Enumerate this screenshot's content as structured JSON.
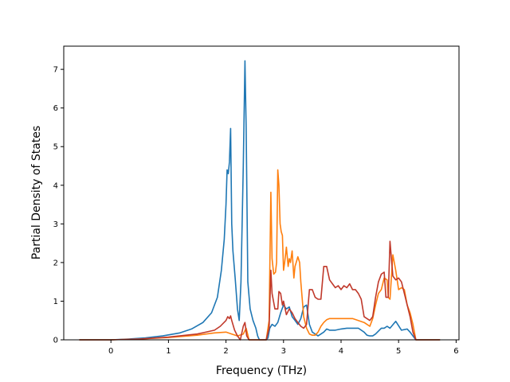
{
  "chart_data": {
    "type": "line",
    "xlabel": "Frequency (THz)",
    "ylabel": "Partial Density of States",
    "xlim": [
      -0.82,
      6.05
    ],
    "ylim": [
      0,
      7.6
    ],
    "xticks": [
      0,
      1,
      2,
      3,
      4,
      5,
      6
    ],
    "yticks": [
      0,
      1,
      2,
      3,
      4,
      5,
      6,
      7
    ],
    "grid": false,
    "series": [
      {
        "color": "#1f77b4",
        "x": [
          -0.55,
          0.0,
          0.3,
          0.6,
          0.9,
          1.2,
          1.4,
          1.6,
          1.75,
          1.85,
          1.92,
          1.97,
          2.0,
          2.02,
          2.04,
          2.06,
          2.08,
          2.1,
          2.12,
          2.16,
          2.2,
          2.23,
          2.26,
          2.3,
          2.33,
          2.35,
          2.38,
          2.42,
          2.47,
          2.52,
          2.55,
          2.58,
          2.62,
          2.66,
          2.7,
          2.73,
          2.76,
          2.8,
          2.85,
          2.9,
          2.95,
          3.0,
          3.05,
          3.1,
          3.15,
          3.2,
          3.25,
          3.3,
          3.35,
          3.4,
          3.45,
          3.5,
          3.55,
          3.6,
          3.7,
          3.75,
          3.8,
          3.9,
          4.0,
          4.1,
          4.2,
          4.3,
          4.4,
          4.45,
          4.5,
          4.55,
          4.6,
          4.7,
          4.75,
          4.8,
          4.85,
          4.95,
          5.05,
          5.15,
          5.2,
          5.25,
          5.3,
          5.5,
          5.72
        ],
        "y": [
          0.0,
          0.0,
          0.02,
          0.05,
          0.1,
          0.18,
          0.28,
          0.45,
          0.7,
          1.1,
          1.8,
          2.6,
          3.5,
          4.4,
          4.3,
          4.6,
          5.47,
          3.0,
          2.3,
          1.6,
          0.8,
          0.5,
          1.5,
          4.5,
          7.22,
          5.5,
          1.5,
          0.8,
          0.5,
          0.3,
          0.1,
          0.0,
          0.0,
          0.0,
          0.0,
          0.05,
          0.3,
          0.4,
          0.35,
          0.45,
          0.7,
          0.9,
          0.8,
          0.85,
          0.6,
          0.5,
          0.4,
          0.55,
          0.85,
          0.9,
          0.4,
          0.2,
          0.15,
          0.1,
          0.2,
          0.28,
          0.25,
          0.25,
          0.28,
          0.3,
          0.3,
          0.3,
          0.2,
          0.12,
          0.1,
          0.1,
          0.15,
          0.3,
          0.3,
          0.35,
          0.3,
          0.48,
          0.25,
          0.28,
          0.2,
          0.1,
          0.0,
          0.0,
          0.0
        ]
      },
      {
        "color": "#ff7f0e",
        "x": [
          -0.55,
          0.0,
          0.5,
          1.0,
          1.5,
          1.8,
          2.0,
          2.1,
          2.2,
          2.3,
          2.35,
          2.4,
          2.5,
          2.6,
          2.7,
          2.75,
          2.78,
          2.8,
          2.83,
          2.86,
          2.88,
          2.9,
          2.92,
          2.94,
          2.96,
          2.98,
          3.0,
          3.02,
          3.05,
          3.08,
          3.1,
          3.12,
          3.15,
          3.18,
          3.2,
          3.22,
          3.25,
          3.28,
          3.3,
          3.35,
          3.4,
          3.45,
          3.5,
          3.55,
          3.6,
          3.65,
          3.7,
          3.75,
          3.8,
          3.9,
          4.0,
          4.1,
          4.2,
          4.3,
          4.4,
          4.45,
          4.5,
          4.55,
          4.6,
          4.65,
          4.7,
          4.75,
          4.8,
          4.82,
          4.85,
          4.9,
          4.95,
          5.0,
          5.05,
          5.1,
          5.15,
          5.2,
          5.25,
          5.3,
          5.5,
          5.72
        ],
        "y": [
          0.0,
          0.0,
          0.02,
          0.06,
          0.12,
          0.18,
          0.2,
          0.15,
          0.1,
          0.15,
          0.3,
          0.0,
          0.0,
          0.0,
          0.0,
          0.5,
          3.82,
          2.1,
          1.7,
          1.75,
          2.0,
          4.4,
          4.0,
          3.0,
          2.8,
          2.7,
          1.8,
          2.0,
          2.4,
          1.9,
          2.1,
          2.0,
          2.3,
          1.6,
          1.9,
          2.0,
          2.15,
          2.0,
          1.5,
          0.6,
          0.3,
          0.15,
          0.12,
          0.12,
          0.2,
          0.35,
          0.45,
          0.52,
          0.55,
          0.55,
          0.55,
          0.55,
          0.55,
          0.5,
          0.45,
          0.4,
          0.35,
          0.55,
          0.9,
          1.2,
          1.3,
          1.6,
          1.55,
          1.1,
          1.05,
          2.2,
          1.8,
          1.3,
          1.35,
          1.3,
          0.9,
          0.7,
          0.4,
          0.0,
          0.0,
          0.0
        ]
      },
      {
        "color": "#c0392b",
        "x": [
          -0.55,
          0.0,
          0.5,
          1.0,
          1.5,
          1.8,
          1.9,
          2.0,
          2.03,
          2.06,
          2.08,
          2.1,
          2.15,
          2.2,
          2.25,
          2.3,
          2.33,
          2.36,
          2.4,
          2.5,
          2.6,
          2.7,
          2.75,
          2.78,
          2.8,
          2.85,
          2.9,
          2.92,
          2.95,
          2.98,
          3.0,
          3.05,
          3.1,
          3.15,
          3.2,
          3.25,
          3.3,
          3.35,
          3.4,
          3.45,
          3.5,
          3.55,
          3.6,
          3.65,
          3.7,
          3.75,
          3.8,
          3.85,
          3.9,
          3.95,
          4.0,
          4.05,
          4.1,
          4.15,
          4.2,
          4.25,
          4.3,
          4.35,
          4.4,
          4.45,
          4.5,
          4.55,
          4.6,
          4.65,
          4.7,
          4.75,
          4.78,
          4.8,
          4.82,
          4.85,
          4.9,
          4.95,
          5.0,
          5.05,
          5.1,
          5.15,
          5.2,
          5.25,
          5.3,
          5.5,
          5.72
        ],
        "y": [
          0.0,
          0.0,
          0.02,
          0.07,
          0.15,
          0.25,
          0.35,
          0.5,
          0.6,
          0.55,
          0.62,
          0.5,
          0.25,
          0.1,
          0.0,
          0.35,
          0.45,
          0.1,
          0.0,
          0.0,
          0.0,
          0.0,
          0.3,
          1.8,
          1.2,
          0.8,
          0.8,
          1.25,
          1.2,
          0.9,
          1.0,
          0.65,
          0.8,
          0.7,
          0.55,
          0.45,
          0.35,
          0.3,
          0.4,
          1.3,
          1.3,
          1.1,
          1.05,
          1.05,
          1.9,
          1.9,
          1.55,
          1.45,
          1.35,
          1.4,
          1.3,
          1.4,
          1.35,
          1.45,
          1.3,
          1.3,
          1.2,
          1.05,
          0.6,
          0.55,
          0.5,
          0.6,
          1.1,
          1.5,
          1.7,
          1.75,
          1.1,
          1.1,
          1.1,
          2.55,
          1.65,
          1.55,
          1.6,
          1.5,
          1.2,
          0.9,
          0.6,
          0.2,
          0.0,
          0.0,
          0.0
        ]
      }
    ]
  }
}
